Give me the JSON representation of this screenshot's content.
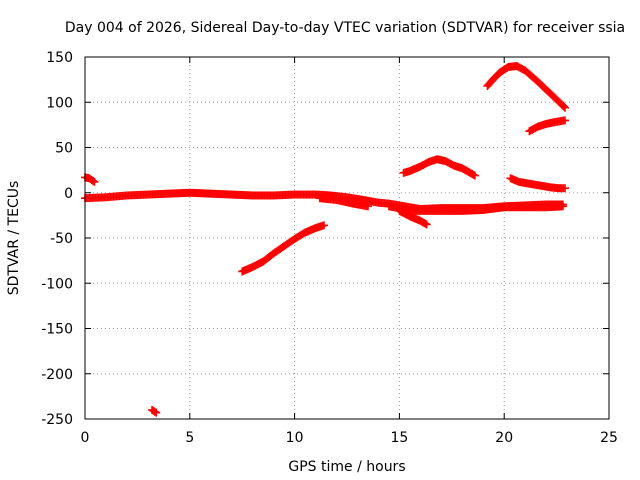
{
  "chart_data": {
    "type": "scatter",
    "title": "Day 004 of 2026, Sidereal Day-to-day VTEC variation (SDTVAR) for receiver ssia",
    "xlabel": "GPS time / hours",
    "ylabel": "SDTVAR / TECUs",
    "xlim": [
      0,
      25
    ],
    "ylim": [
      -250,
      150
    ],
    "x_ticks": [
      0,
      5,
      10,
      15,
      20,
      25
    ],
    "x_tick_labels": [
      "0",
      "5",
      "10",
      "15",
      "20",
      "25"
    ],
    "y_ticks": [
      -250,
      -200,
      -150,
      -100,
      -50,
      0,
      50,
      100,
      150
    ],
    "y_tick_labels": [
      "-250",
      "-200",
      "-150",
      "-100",
      "-50",
      "0",
      "50",
      "100",
      "150"
    ],
    "grid": true,
    "marker": "plus",
    "color": "#ff0000",
    "segments": [
      {
        "points": [
          [
            0,
            17
          ],
          [
            0.2,
            16
          ],
          [
            0.45,
            12
          ]
        ]
      },
      {
        "points": [
          [
            0,
            -6
          ],
          [
            1,
            -5
          ],
          [
            2,
            -3
          ],
          [
            3,
            -2
          ],
          [
            4,
            -1
          ],
          [
            5,
            0
          ],
          [
            6,
            -1
          ],
          [
            7,
            -2
          ],
          [
            8,
            -3
          ],
          [
            9,
            -3
          ],
          [
            10,
            -2
          ],
          [
            11,
            -2
          ],
          [
            11.7,
            -3
          ],
          [
            12.5,
            -5
          ],
          [
            13.3,
            -8
          ],
          [
            14,
            -11
          ],
          [
            14.5,
            -12
          ],
          [
            15,
            -14
          ],
          [
            15.5,
            -16
          ],
          [
            16,
            -18
          ],
          [
            17,
            -17
          ],
          [
            18,
            -17
          ],
          [
            19,
            -17
          ],
          [
            20,
            -15
          ],
          [
            21,
            -14
          ],
          [
            22,
            -13
          ],
          [
            22.8,
            -13
          ]
        ]
      },
      {
        "points": [
          [
            11.2,
            -6
          ],
          [
            12,
            -8
          ],
          [
            12.8,
            -12
          ],
          [
            13.5,
            -15
          ]
        ]
      },
      {
        "points": [
          [
            14.5,
            -15
          ],
          [
            15,
            -17
          ],
          [
            15.5,
            -20
          ],
          [
            16,
            -20
          ],
          [
            17,
            -20
          ],
          [
            18,
            -20
          ],
          [
            19,
            -19
          ],
          [
            20,
            -16
          ],
          [
            21,
            -16
          ],
          [
            22,
            -16
          ],
          [
            22.8,
            -15
          ]
        ]
      },
      {
        "points": [
          [
            15,
            -20
          ],
          [
            15.5,
            -26
          ],
          [
            16,
            -31
          ],
          [
            16.3,
            -35
          ]
        ]
      },
      {
        "points": [
          [
            3.2,
            -240
          ],
          [
            3.4,
            -243
          ]
        ]
      },
      {
        "points": [
          [
            7.5,
            -87
          ],
          [
            8,
            -82
          ],
          [
            8.5,
            -76
          ],
          [
            9,
            -67
          ],
          [
            9.5,
            -59
          ],
          [
            10,
            -51
          ],
          [
            10.5,
            -44
          ],
          [
            11,
            -39
          ],
          [
            11.4,
            -36
          ]
        ]
      },
      {
        "points": [
          [
            15.2,
            22
          ],
          [
            15.5,
            24
          ],
          [
            16,
            29
          ],
          [
            16.4,
            34
          ],
          [
            16.8,
            37
          ],
          [
            17.2,
            35
          ],
          [
            17.6,
            30
          ],
          [
            18,
            27
          ],
          [
            18.3,
            23
          ],
          [
            18.6,
            19
          ]
        ]
      },
      {
        "points": [
          [
            19.2,
            118
          ],
          [
            19.5,
            126
          ],
          [
            19.8,
            133
          ],
          [
            20.2,
            139
          ],
          [
            20.6,
            140
          ],
          [
            21,
            135
          ],
          [
            21.5,
            125
          ],
          [
            22,
            114
          ],
          [
            22.5,
            103
          ],
          [
            22.9,
            94
          ]
        ]
      },
      {
        "points": [
          [
            20.3,
            16
          ],
          [
            20.7,
            12
          ],
          [
            21.2,
            10
          ],
          [
            21.7,
            8
          ],
          [
            22.2,
            6
          ],
          [
            22.6,
            5
          ],
          [
            22.9,
            5
          ]
        ]
      },
      {
        "points": [
          [
            21.2,
            68
          ],
          [
            21.6,
            73
          ],
          [
            22,
            76
          ],
          [
            22.4,
            78
          ],
          [
            22.9,
            80
          ]
        ]
      }
    ]
  }
}
